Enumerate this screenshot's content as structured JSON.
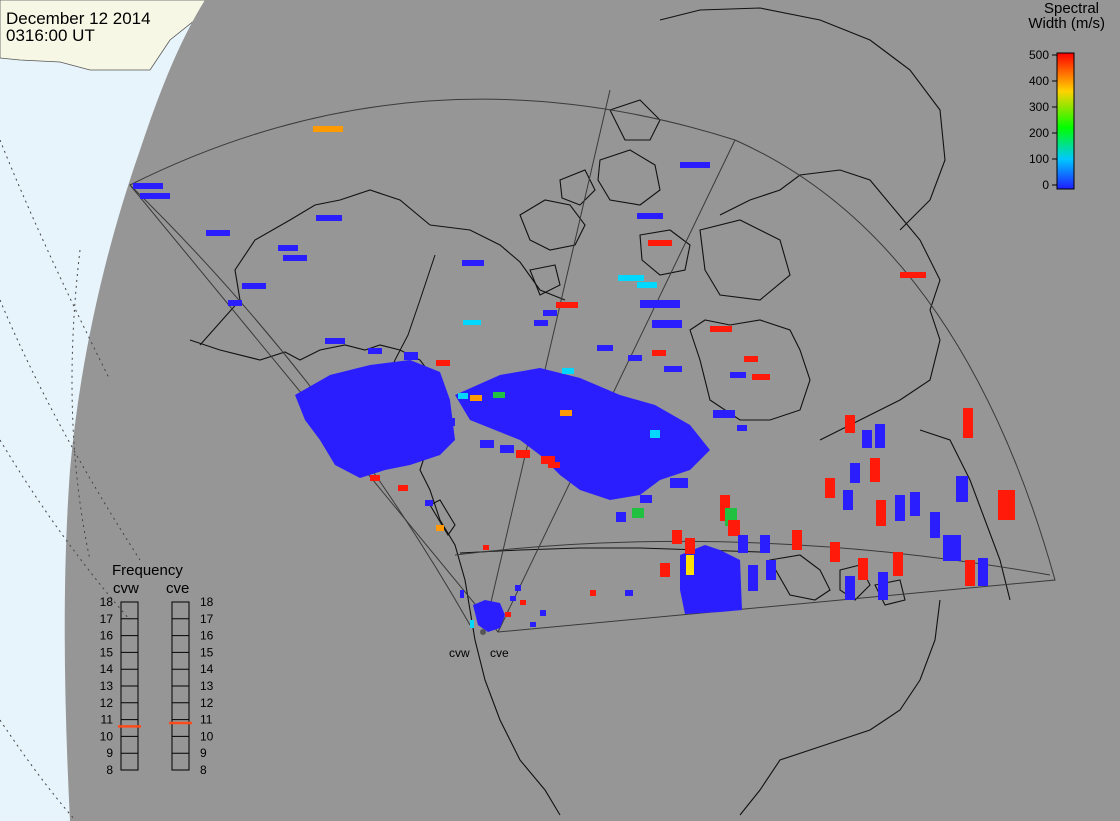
{
  "header": {
    "date": "December 12 2014",
    "time": "0316:00 UT"
  },
  "colorbar": {
    "title_line1": "Spectral",
    "title_line2": "Width (m/s)",
    "ticks": [
      "500",
      "400",
      "300",
      "200",
      "100",
      "0"
    ],
    "min": 0,
    "max": 500,
    "colors": [
      "#1e1eff",
      "#00c8ff",
      "#00ff00",
      "#ffd200",
      "#ff0000"
    ]
  },
  "frequency_panel": {
    "title": "Frequency",
    "radars": [
      {
        "name": "cvw",
        "value_mhz": 10.6
      },
      {
        "name": "cve",
        "value_mhz": 10.8
      }
    ],
    "ticks": [
      "18",
      "17",
      "16",
      "15",
      "14",
      "13",
      "12",
      "11",
      "10",
      "9",
      "8"
    ],
    "min": 8,
    "max": 18,
    "marker_color": "#ff4a1a"
  },
  "radar_sites": {
    "labels": [
      "cvw",
      "cve"
    ]
  },
  "map": {
    "ocean_color": "#e8f4fb",
    "land_color": "#f7f7e6",
    "night_color": "#969696",
    "echo_colors": {
      "low": "#2a1eff",
      "cyan": "#00d8ff",
      "green": "#20c040",
      "orange": "#ff9b00",
      "yellow": "#ffe000",
      "red": "#ff1a0a"
    }
  }
}
